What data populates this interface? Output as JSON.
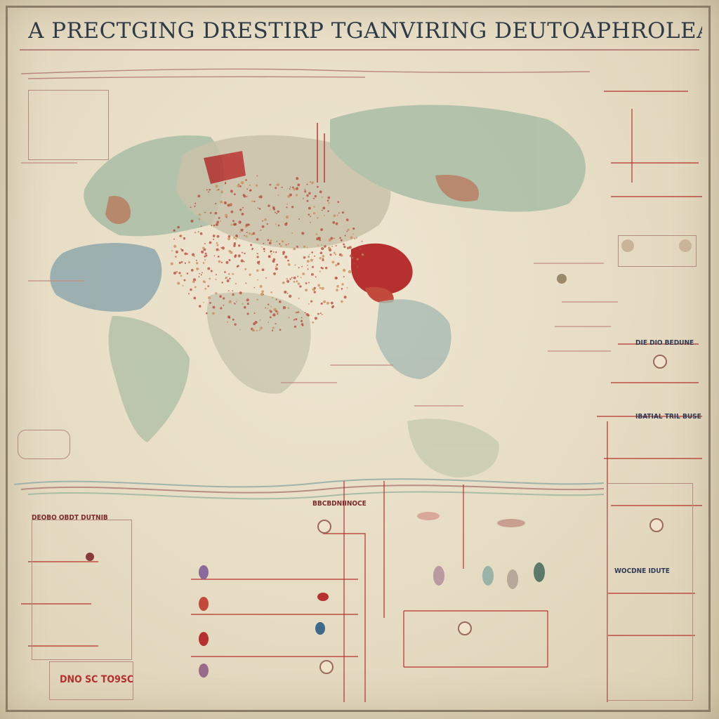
{
  "poster": {
    "title": "A PRECTGING DRESTIRP TGANVIRING DEUTOAPHROLEA BAIAE POTERT"
  },
  "labels": {
    "sidebar_right_1": "DIE DIO BEDUNE",
    "sidebar_right_2": "IBATIAL TRIL BUSE",
    "bottom_panel_heading": "DEOBO OBDT DUTNIB",
    "bottom_center_heading": "BBCBDNIINOCE",
    "bottom_left_badge": "DNO SC TO9SC",
    "right_panel_heading": "WOCDNE IDUTE"
  },
  "colors": {
    "paper": "#e8dec6",
    "accent_red": "#b5302e",
    "ink_navy": "#2f3b47",
    "map_green": "#a9bda6",
    "map_blue": "#8fa8ad"
  }
}
